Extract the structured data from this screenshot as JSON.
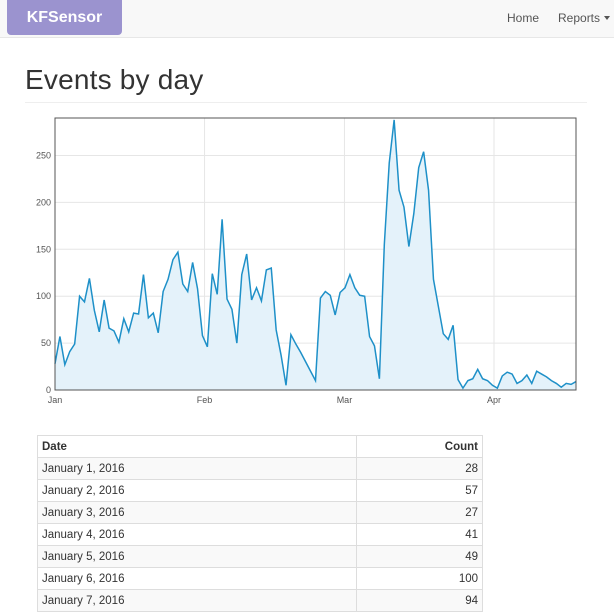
{
  "navbar": {
    "brand": "KFSensor",
    "links": [
      {
        "label": "Home"
      },
      {
        "label": "Reports"
      }
    ]
  },
  "page": {
    "title": "Events by day"
  },
  "colors": {
    "brand": "#9b93cf",
    "line": "#1e90c8",
    "area": "#e4f2fa"
  },
  "chart_data": {
    "type": "area",
    "title": "",
    "xlabel": "",
    "ylabel": "",
    "x_start": "2016-01-01",
    "x_end": "2016-04-18",
    "x_ticks": [
      "Jan",
      "Feb",
      "Mar",
      "Apr"
    ],
    "y_ticks": [
      0,
      50,
      100,
      150,
      200,
      250
    ],
    "ylim": [
      0,
      290
    ],
    "grid": true,
    "legend": "none",
    "series": [
      {
        "values": [
          28,
          57,
          27,
          41,
          49,
          100,
          94,
          119,
          85,
          62,
          96,
          66,
          63,
          51,
          76,
          62,
          82,
          81,
          123,
          77,
          82,
          61,
          105,
          118,
          139,
          147,
          113,
          105,
          136,
          108,
          58,
          46,
          124,
          102,
          182,
          97,
          86,
          50,
          123,
          145,
          96,
          109,
          95,
          128,
          130,
          64,
          37,
          5,
          59,
          49,
          40,
          30,
          20,
          10,
          98,
          105,
          101,
          80,
          104,
          109,
          123,
          109,
          101,
          100,
          57,
          47,
          12,
          155,
          242,
          288,
          213,
          195,
          153,
          188,
          237,
          254,
          213,
          118,
          89,
          60,
          54,
          69,
          11,
          2,
          10,
          12,
          22,
          12,
          10,
          5,
          2,
          15,
          19,
          17,
          7,
          10,
          16,
          7,
          20,
          17,
          14,
          10,
          7,
          3,
          7,
          6,
          9
        ]
      }
    ]
  },
  "table": {
    "headers": {
      "date": "Date",
      "count": "Count"
    },
    "rows": [
      {
        "date": "January 1, 2016",
        "count": "28"
      },
      {
        "date": "January 2, 2016",
        "count": "57"
      },
      {
        "date": "January 3, 2016",
        "count": "27"
      },
      {
        "date": "January 4, 2016",
        "count": "41"
      },
      {
        "date": "January 5, 2016",
        "count": "49"
      },
      {
        "date": "January 6, 2016",
        "count": "100"
      },
      {
        "date": "January 7, 2016",
        "count": "94"
      }
    ]
  }
}
